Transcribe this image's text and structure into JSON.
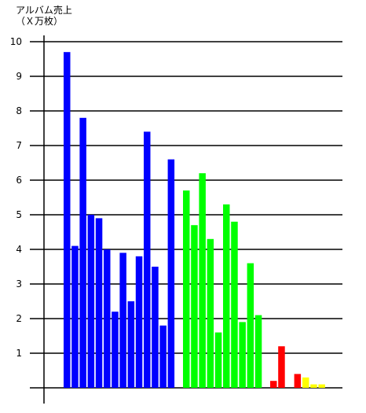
{
  "chart_data": {
    "type": "bar",
    "ylabel_lines": [
      "アルバム売上",
      "（Ｘ万枚）"
    ],
    "xlabel": "",
    "ylim": [
      0,
      10
    ],
    "yticks": [
      1,
      2,
      3,
      4,
      5,
      6,
      7,
      8,
      9,
      10
    ],
    "yticks_labels": [
      "1",
      "2",
      "3",
      "4",
      "5",
      "6",
      "7",
      "8",
      "9",
      "10"
    ],
    "grid": true,
    "legend": "none",
    "groups": [
      {
        "color": "#0000ff",
        "values": [
          9.7,
          4.1,
          7.8,
          5.0,
          4.9,
          4.0,
          2.2,
          3.9,
          2.5,
          3.8,
          7.4,
          3.5,
          1.8,
          6.6
        ]
      },
      {
        "color": "#00ff00",
        "values": [
          5.7,
          4.7,
          6.2,
          4.3,
          1.6,
          5.3,
          4.8,
          1.9,
          3.6,
          2.1
        ]
      },
      {
        "color": "#ff0000",
        "values": [
          0.2,
          1.2,
          0.0,
          0.4
        ]
      },
      {
        "color": "#ffff00",
        "values": [
          0.3,
          0.1,
          0.1
        ]
      }
    ]
  }
}
